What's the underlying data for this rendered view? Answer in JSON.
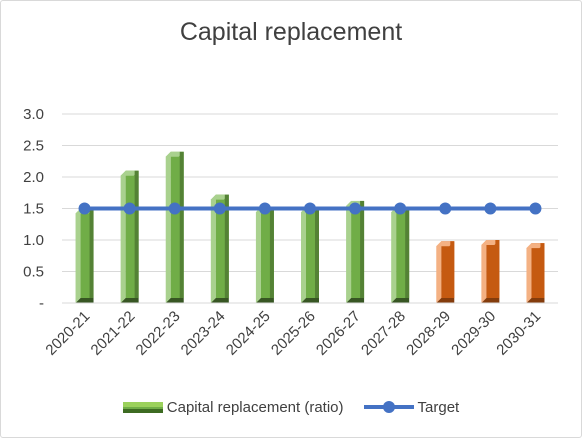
{
  "chart_data": {
    "type": "bar",
    "title": "Capital replacement",
    "categories": [
      "2020-21",
      "2021-22",
      "2022-23",
      "2023-24",
      "2024-25",
      "2025-26",
      "2026-27",
      "2027-28",
      "2028-29",
      "2029-30",
      "2030-31"
    ],
    "series": [
      {
        "name": "Capital replacement (ratio)",
        "type": "bar",
        "values": [
          1.5,
          2.1,
          2.4,
          1.72,
          1.52,
          1.52,
          1.62,
          1.52,
          0.98,
          1.0,
          0.95
        ],
        "colors": [
          "#70ad47",
          "#70ad47",
          "#70ad47",
          "#70ad47",
          "#70ad47",
          "#70ad47",
          "#70ad47",
          "#70ad47",
          "#c55a11",
          "#c55a11",
          "#c55a11"
        ]
      },
      {
        "name": "Target",
        "type": "line",
        "values": [
          1.5,
          1.5,
          1.5,
          1.5,
          1.5,
          1.5,
          1.5,
          1.5,
          1.5,
          1.5,
          1.5
        ],
        "color": "#4472c4"
      }
    ],
    "y_ticks": [
      "-",
      "0.5",
      "1.0",
      "1.5",
      "2.0",
      "2.5",
      "3.0"
    ],
    "ylim": [
      0,
      3.0
    ],
    "grid": true,
    "legend_position": "bottom"
  }
}
